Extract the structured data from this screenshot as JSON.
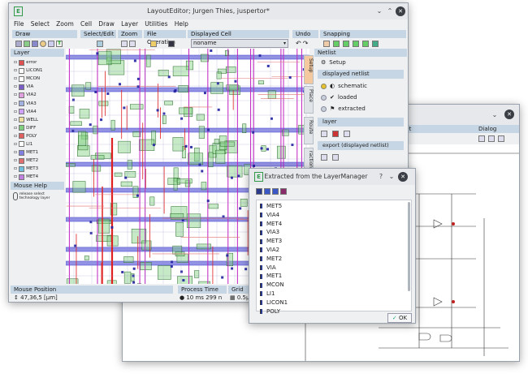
{
  "back_window": {
    "toolbar_label_partial": "eet",
    "dialog_label": "Dialog"
  },
  "layout_editor": {
    "title": "LayoutEditor; Jurgen Thies, juspertor*",
    "menu": [
      "File",
      "Select",
      "Zoom",
      "Cell",
      "Draw",
      "Layer",
      "Utilities",
      "Help"
    ],
    "toolbar_groups": [
      {
        "label": "Draw"
      },
      {
        "label": "Select/Edit"
      },
      {
        "label": "Zoom"
      },
      {
        "label": "File Operation"
      },
      {
        "label": "Displayed Cell"
      },
      {
        "label": "Undo"
      },
      {
        "label": "Snapping"
      }
    ],
    "displayed_cell_value": "noname",
    "layer_panel": {
      "title": "Layer",
      "layers": [
        {
          "name": "error",
          "color": "#e05050"
        },
        {
          "name": "LICON1",
          "color": "#ffffff"
        },
        {
          "name": "MCON",
          "color": "#ffffff"
        },
        {
          "name": "VIA",
          "color": "#7a5cc8"
        },
        {
          "name": "VIA2",
          "color": "#e0a0e0"
        },
        {
          "name": "VIA3",
          "color": "#a0b0e0"
        },
        {
          "name": "VIA4",
          "color": "#d0a0ff"
        },
        {
          "name": "WELL",
          "color": "#f0e0a0"
        },
        {
          "name": "DIFF",
          "color": "#80d080"
        },
        {
          "name": "POLY",
          "color": "#e06060"
        },
        {
          "name": "LI1",
          "color": "#ffffff"
        },
        {
          "name": "MET1",
          "color": "#8080e0"
        },
        {
          "name": "MET2",
          "color": "#e07070"
        },
        {
          "name": "MET3",
          "color": "#70c0e0"
        },
        {
          "name": "MET4",
          "color": "#c080e0"
        }
      ]
    },
    "mouse_help": {
      "title": "Mouse Help",
      "text": "release select technology layer"
    },
    "netlist_panel": {
      "title": "Netlist",
      "setup_label": "Setup",
      "displayed_netlist_label": "displayed netlist",
      "options": [
        "schematic",
        "loaded",
        "extracted"
      ],
      "layer_label": "layer",
      "export_label": "export (displayed netlist)",
      "vertical_tabs": [
        "Setup",
        "Place",
        "Route",
        "raction"
      ]
    },
    "status": {
      "mouse_position_label": "Mouse Position",
      "mouse_position_value": "47,36,5 [µm]",
      "process_time_label": "Process Time",
      "process_time_value": "10 ms",
      "process_extra": "299 n",
      "grid_label": "Grid",
      "grid_value": "0.5µm"
    }
  },
  "extract_dialog": {
    "title": "Extracted from the LayerManager",
    "help_glyph": "?",
    "layers": [
      "MET5",
      "VIA4",
      "MET4",
      "VIA3",
      "MET3",
      "VIA2",
      "MET2",
      "VIA",
      "MET1",
      "MCON",
      "LI1",
      "LICON1",
      "POLY"
    ],
    "ok_label": "OK"
  },
  "colors": {
    "panel_header": "#c7d6e4",
    "layout_background": "#ffffff",
    "metal_blue": "#3a3ad0",
    "poly_red": "#e02020",
    "via_magenta": "#c020c0",
    "diff_green": "#80d080"
  }
}
